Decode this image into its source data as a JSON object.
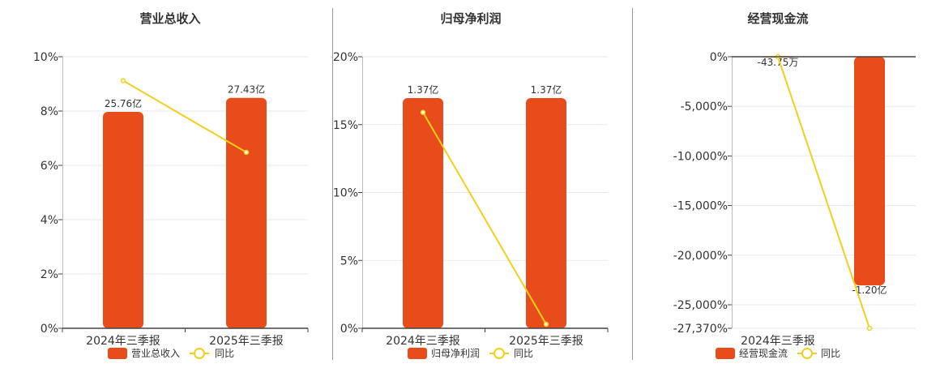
{
  "colors": {
    "bar": "#e84c1b",
    "line": "#f2cf1d",
    "grid": "#e6e9f2",
    "axis": "#444444",
    "text": "#333333",
    "divider": "#999999"
  },
  "chart_data": [
    {
      "type": "bar",
      "title": "营业总收入",
      "categories": [
        "2024年三季报",
        "2025年三季报"
      ],
      "bar_series": {
        "name": "营业总收入",
        "values": [
          25.76,
          27.43
        ],
        "labels": [
          "25.76亿",
          "27.43亿"
        ],
        "unit": "亿"
      },
      "line_series": {
        "name": "同比",
        "values": [
          9.12,
          6.48
        ],
        "unit": "%"
      },
      "y_ticks": [
        "0%",
        "2%",
        "4%",
        "6%",
        "8%",
        "10%"
      ],
      "y_tick_values": [
        0,
        2,
        4,
        6,
        8,
        10
      ],
      "ylim": [
        0,
        10
      ],
      "grid": true,
      "legend": "bottom"
    },
    {
      "type": "bar",
      "title": "归母净利润",
      "categories": [
        "2024年三季报",
        "2025年三季报"
      ],
      "bar_series": {
        "name": "归母净利润",
        "values": [
          1.37,
          1.37
        ],
        "labels": [
          "1.37亿",
          "1.37亿"
        ],
        "unit": "亿"
      },
      "line_series": {
        "name": "同比",
        "values": [
          15.9,
          0.3
        ],
        "unit": "%"
      },
      "y_ticks": [
        "0%",
        "5%",
        "10%",
        "15%",
        "20%"
      ],
      "y_tick_values": [
        0,
        5,
        10,
        15,
        20
      ],
      "ylim": [
        0,
        20
      ],
      "grid": true,
      "legend": "bottom"
    },
    {
      "type": "bar",
      "title": "经营现金流",
      "categories": [
        "2024年三季报",
        ""
      ],
      "bar_series": {
        "name": "经营现金流",
        "values": [
          -0.004375,
          -1.2
        ],
        "labels": [
          "-43.75万",
          "-1.20亿"
        ],
        "unit": "亿"
      },
      "line_series": {
        "name": "同比",
        "values": [
          0,
          -27370
        ],
        "unit": "%"
      },
      "y_ticks": [
        "0%",
        "-5,000%",
        "-10,000%",
        "-15,000%",
        "-20,000%",
        "-25,000%",
        "-27,370%"
      ],
      "y_tick_values": [
        0,
        -5000,
        -10000,
        -15000,
        -20000,
        -25000,
        -27370
      ],
      "ylim": [
        -27370,
        0
      ],
      "grid": true,
      "legend": "bottom"
    }
  ]
}
